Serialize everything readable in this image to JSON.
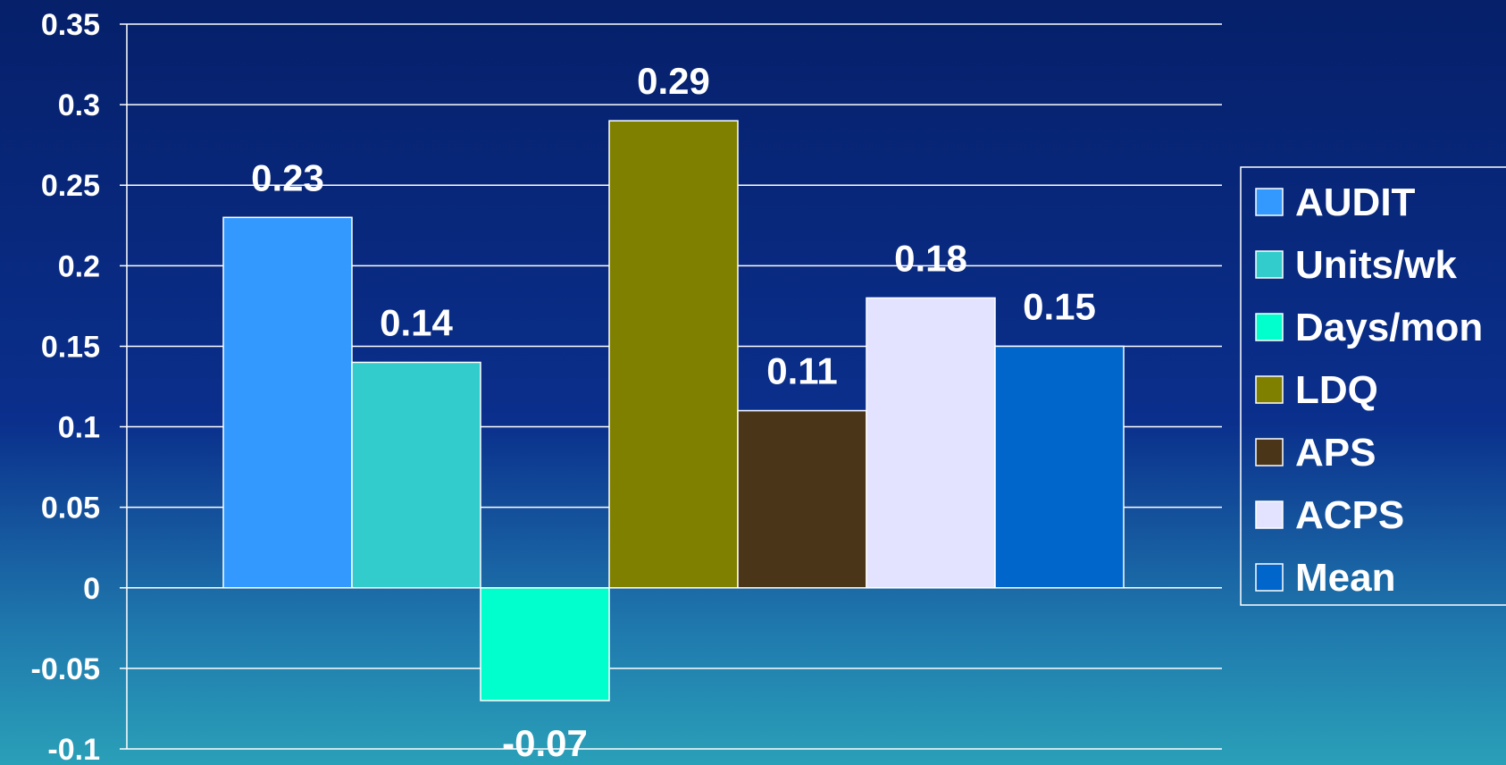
{
  "chart_data": {
    "type": "bar",
    "title": "",
    "xlabel": "",
    "ylabel": "",
    "ylim": [
      -0.1,
      0.35
    ],
    "y_ticks": [
      0.35,
      0.3,
      0.25,
      0.2,
      0.15,
      0.1,
      0.05,
      0,
      -0.05,
      -0.1
    ],
    "y_tick_labels": [
      "0.35",
      "0.3",
      "0.25",
      "0.2",
      "0.15",
      "0.1",
      "0.05",
      "0",
      "-0.05",
      "-0.1"
    ],
    "grid": true,
    "legend_position": "right",
    "series": [
      {
        "name": "AUDIT",
        "value": 0.23,
        "label": "0.23",
        "color": "#3399ff"
      },
      {
        "name": "Units/wk",
        "value": 0.14,
        "label": "0.14",
        "color": "#33cccc"
      },
      {
        "name": "Days/mon",
        "value": -0.07,
        "label": "-0.07",
        "color": "#00ffcc"
      },
      {
        "name": "LDQ",
        "value": 0.29,
        "label": "0.29",
        "color": "#808000"
      },
      {
        "name": "APS",
        "value": 0.11,
        "label": "0.11",
        "color": "#4a3518"
      },
      {
        "name": "ACPS",
        "value": 0.18,
        "label": "0.18",
        "color": "#e3e3ff"
      },
      {
        "name": "Mean",
        "value": 0.15,
        "label": "0.15",
        "color": "#0066cc"
      }
    ]
  }
}
